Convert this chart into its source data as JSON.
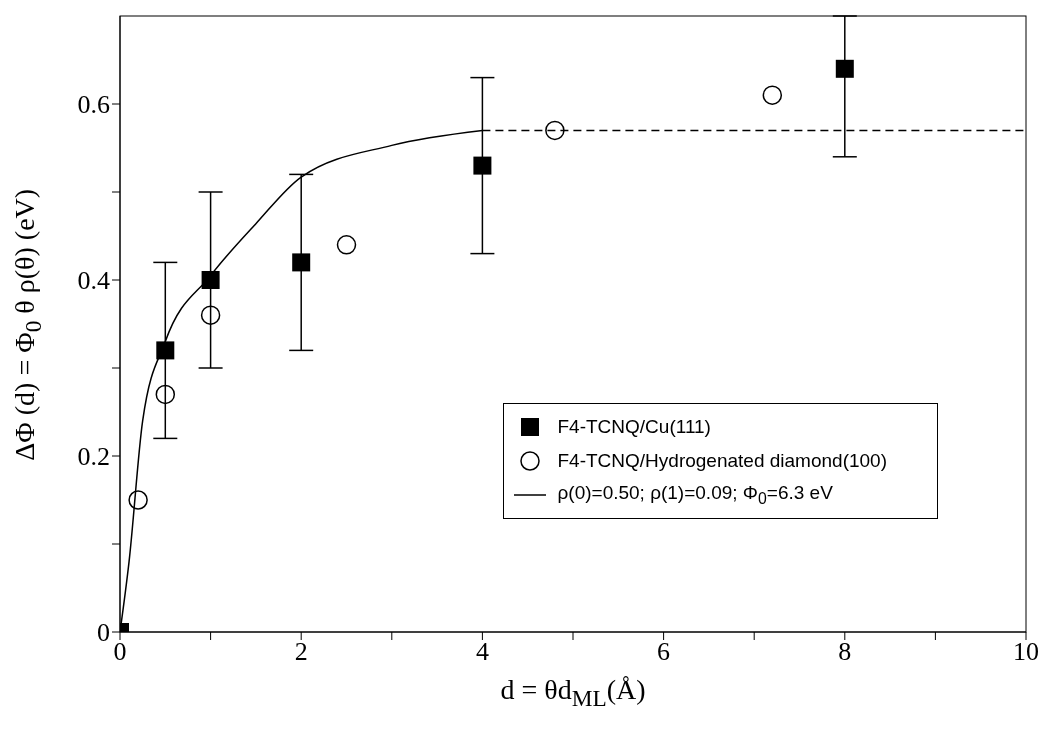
{
  "chart_data": {
    "type": "scatter",
    "xlabel": "d = θd$_{ML}$(Å)",
    "ylabel": "ΔΦ (d) = Φ$_{0}$ θ ρ(θ) (eV)",
    "xlim": [
      0,
      10
    ],
    "xticks": [
      0,
      {
        "value": 1,
        "label": null
      },
      2,
      {
        "value": 3,
        "label": null
      },
      4,
      {
        "value": 5,
        "label": null
      },
      6,
      {
        "value": 7,
        "label": null
      },
      8,
      {
        "value": 9,
        "label": null
      },
      10
    ],
    "ylim": [
      0,
      0.7
    ],
    "yticks": [
      0,
      {
        "value": 0.1,
        "label": null
      },
      {
        "value": 0.2,
        "label": "0.2"
      },
      {
        "value": 0.3,
        "label": null
      },
      {
        "value": 0.4,
        "label": "0.4"
      },
      {
        "value": 0.5,
        "label": null
      },
      {
        "value": 0.6,
        "label": "0.6"
      }
    ],
    "grid": false,
    "legend": "bottom right",
    "series": [
      {
        "name": "F4-TCNQ/Cu(111)",
        "marker": "square",
        "color": "#000000",
        "x": [
          0,
          0.5,
          1,
          2,
          4,
          8
        ],
        "values": [
          0,
          0.32,
          0.4,
          0.42,
          0.53,
          0.64
        ],
        "errors": [
          null,
          0.1,
          0.1,
          0.1,
          0.1,
          [
            0.54,
            0.7
          ]
        ]
      },
      {
        "name": "F4-TCNQ/Hydrogenated diamond(100)",
        "marker": "circle",
        "color": "#000000",
        "x": [
          0.2,
          0.5,
          1,
          2.5,
          4.8,
          7.2
        ],
        "values": [
          0.15,
          0.27,
          0.36,
          0.44,
          0.57,
          0.61
        ]
      },
      {
        "name": "ρ(0)=0.50; ρ(1)=0.09; Φ$_{0}$=6.3 eV",
        "type": "line",
        "marker": "none",
        "line_style": "solid",
        "color": "#000000",
        "x": [
          0,
          0.1,
          0.25,
          0.5,
          1,
          1.5,
          2,
          3,
          4
        ],
        "values": [
          0,
          0.08,
          0.24,
          0.33,
          0.405,
          0.464,
          0.517,
          0.553,
          0.57
        ]
      },
      {
        "type": "line",
        "marker": "none",
        "line_style": "dashed",
        "color": "#000000",
        "x": [
          4,
          10
        ],
        "values": [
          0.57,
          0.57
        ]
      }
    ]
  }
}
